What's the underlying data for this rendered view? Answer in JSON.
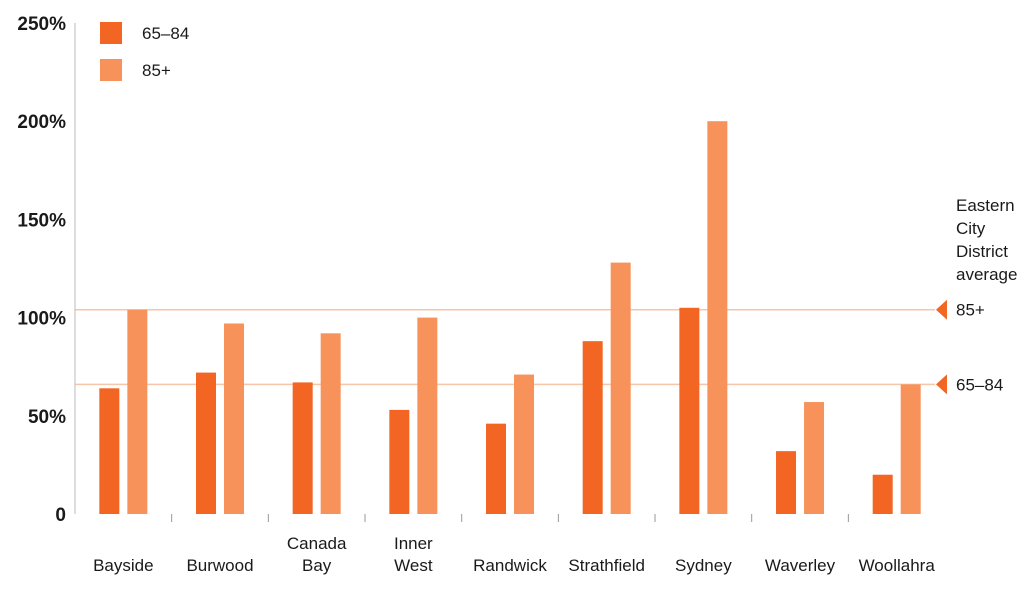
{
  "chart_data": {
    "type": "bar",
    "categories": [
      [
        "Bayside"
      ],
      [
        "Burwood"
      ],
      [
        "Canada",
        "Bay"
      ],
      [
        "Inner",
        "West"
      ],
      [
        "Randwick"
      ],
      [
        "Strathfield"
      ],
      [
        "Sydney"
      ],
      [
        "Waverley"
      ],
      [
        "Woollahra"
      ]
    ],
    "series": [
      {
        "name": "65–84",
        "color": "#f26522",
        "values": [
          64,
          72,
          67,
          53,
          46,
          88,
          105,
          32,
          20
        ]
      },
      {
        "name": "85+",
        "color": "#f7935a",
        "values": [
          104,
          97,
          92,
          100,
          71,
          128,
          200,
          57,
          66
        ]
      }
    ],
    "yticks": [
      {
        "value": 0,
        "label": "0"
      },
      {
        "value": 50,
        "label": "50%"
      },
      {
        "value": 100,
        "label": "100%"
      },
      {
        "value": 150,
        "label": "150%"
      },
      {
        "value": 200,
        "label": "200%"
      },
      {
        "value": 250,
        "label": "250%"
      }
    ],
    "ylim": [
      0,
      250
    ],
    "legend": {
      "placement": "top-left"
    },
    "reference_lines": {
      "title_lines": [
        "Eastern",
        "City",
        "District",
        "average"
      ],
      "color": "#f7c6a8",
      "marker_color": "#f26522",
      "lines": [
        {
          "label": "85+",
          "value": 104
        },
        {
          "label": "65–84",
          "value": 66
        }
      ]
    }
  }
}
